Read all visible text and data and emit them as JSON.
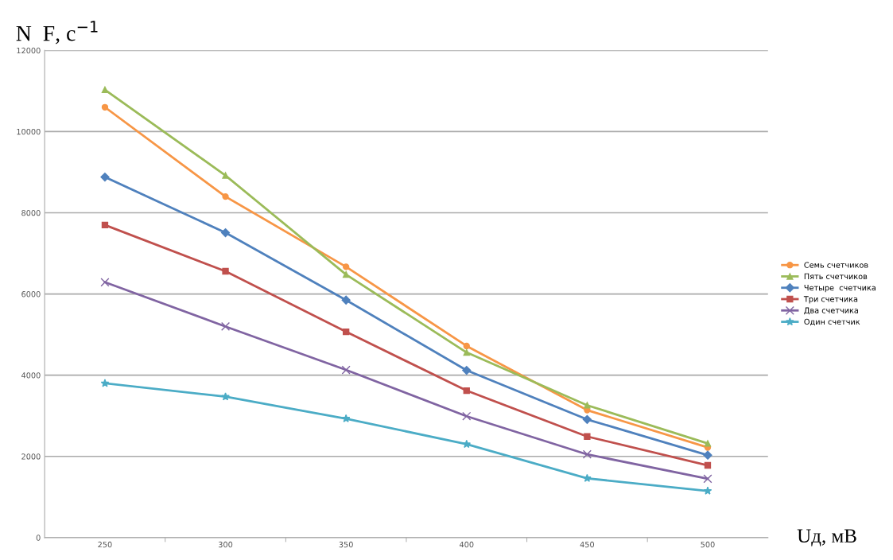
{
  "chart_data": {
    "type": "line",
    "ylabel": "N  F, c$^{−1}$",
    "xlabel": "Uд, мВ",
    "categories": [
      "250",
      "300",
      "350",
      "400",
      "450",
      "500"
    ],
    "ylim": [
      0,
      12000
    ],
    "yticks": [
      0,
      2000,
      4000,
      6000,
      8000,
      10000,
      12000
    ],
    "grid": "y",
    "legend": "right",
    "series": [
      {
        "name": "Семь счетчиков",
        "color": "#f79646",
        "marker": "circle",
        "values": [
          10600,
          8400,
          6670,
          4720,
          3140,
          2220
        ]
      },
      {
        "name": "Пять счетчиков",
        "color": "#9bbb59",
        "marker": "triangle",
        "values": [
          11030,
          8920,
          6480,
          4560,
          3260,
          2320
        ]
      },
      {
        "name": "Четыре  счетчика",
        "color": "#4f81bd",
        "marker": "diamond",
        "values": [
          8880,
          7510,
          5850,
          4120,
          2910,
          2030
        ]
      },
      {
        "name": "Три счетчика",
        "color": "#c0504d",
        "marker": "square",
        "values": [
          7700,
          6560,
          5070,
          3620,
          2490,
          1780
        ]
      },
      {
        "name": "Два счетчика",
        "color": "#8064a2",
        "marker": "cross",
        "values": [
          6290,
          5200,
          4130,
          2990,
          2050,
          1450
        ]
      },
      {
        "name": "Один счетчик",
        "color": "#4bacc6",
        "marker": "star",
        "values": [
          3800,
          3470,
          2930,
          2300,
          1460,
          1150
        ]
      }
    ]
  }
}
